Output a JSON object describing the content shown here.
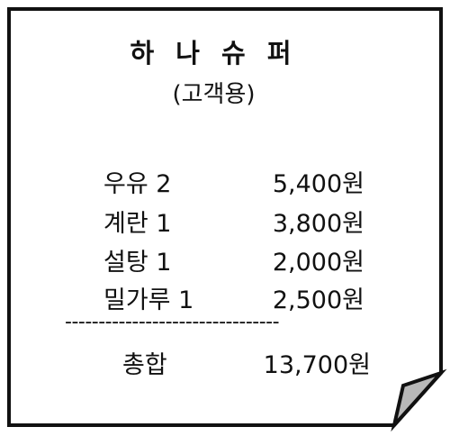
{
  "receipt": {
    "store_name": "하 나 슈 퍼",
    "receipt_type": "(고객용)",
    "items": [
      {
        "name": "우유 2",
        "price": "5,400원"
      },
      {
        "name": "계란 1",
        "price": "3,800원"
      },
      {
        "name": "설탕 1",
        "price": "2,000원"
      },
      {
        "name": "밀가루 1",
        "price": "2,500원"
      }
    ],
    "divider": "--------------------------------",
    "total_label": "총합",
    "total_value": "13,700원"
  },
  "colors": {
    "paper": "#ffffff",
    "border": "#111111",
    "curl": "#b8b8b8"
  }
}
